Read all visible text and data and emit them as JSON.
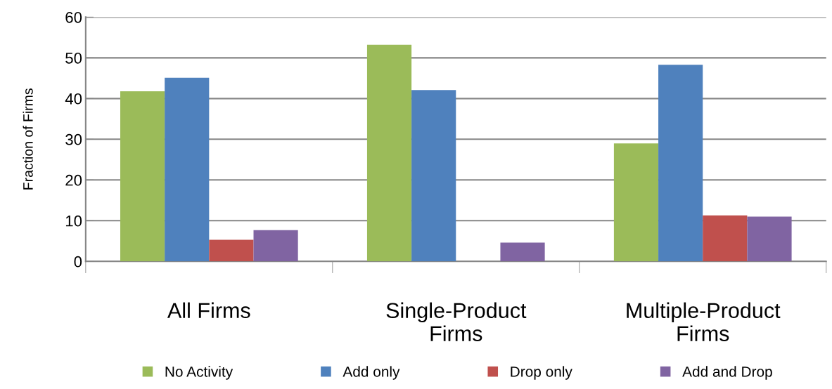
{
  "chart_data": {
    "type": "bar",
    "ylabel": "Fraction of Firms",
    "categories": [
      "All Firms",
      "Single-Product\nFirms",
      "Multiple-Product\nFirms"
    ],
    "series": [
      {
        "name": "No Activity",
        "color": "#9bbb59",
        "values": [
          41.8,
          53.2,
          29.0
        ]
      },
      {
        "name": "Add only",
        "color": "#4f81bd",
        "values": [
          45.1,
          42.1,
          48.3
        ]
      },
      {
        "name": "Drop only",
        "color": "#c0504d",
        "values": [
          5.3,
          0,
          11.3
        ]
      },
      {
        "name": "Add and Drop",
        "color": "#8064a2",
        "values": [
          7.7,
          4.6,
          11.0
        ]
      }
    ],
    "ylim": [
      0,
      60
    ],
    "yticks": [
      0,
      10,
      20,
      30,
      40,
      50,
      60
    ],
    "grid": "y",
    "legend": "bottom"
  }
}
